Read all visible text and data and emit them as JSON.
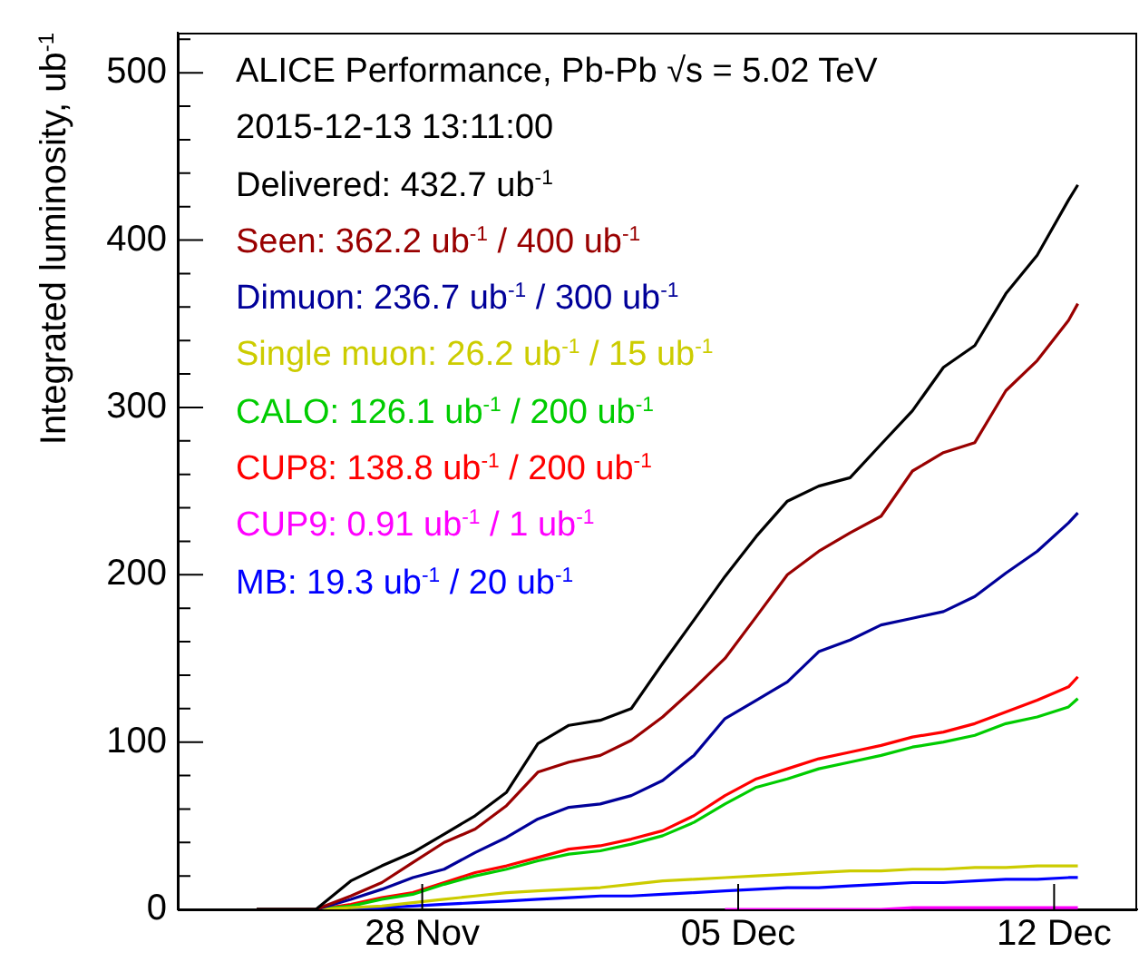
{
  "chart_data": {
    "type": "line",
    "title": "ALICE Performance, Pb-Pb √s = 5.02 TeV",
    "subtitle": "2015-12-13 13:11:00",
    "ylabel": "Integrated luminosity, ub$^{-1}$",
    "x": [
      "2015-11-24T08:00",
      "2015-11-25T15:30",
      "2015-11-26T10:00",
      "2015-11-27T02:30",
      "2015-11-27T19:00",
      "2015-11-28T11:40",
      "2015-11-29T04:10",
      "2015-11-29T20:50",
      "2015-11-30T13:30",
      "2015-12-01T06:00",
      "2015-12-01T22:40",
      "2015-12-02T15:10",
      "2015-12-03T07:50",
      "2015-12-04T00:30",
      "2015-12-04T17:00",
      "2015-12-05T09:40",
      "2015-12-06T02:10",
      "2015-12-06T18:50",
      "2015-12-07T11:30",
      "2015-12-08T04:00",
      "2015-12-08T20:40",
      "2015-12-09T13:10",
      "2015-12-10T05:50",
      "2015-12-10T22:20",
      "2015-12-11T15:00",
      "2015-12-12T07:40",
      "2015-12-12T12:36"
    ],
    "series": [
      {
        "name": "Delivered: 432.7 ub$^{-1}$",
        "color": "#000000",
        "values": [
          0,
          0,
          17,
          26,
          34,
          45,
          56,
          70,
          99,
          110,
          113,
          120,
          147,
          173,
          199,
          223,
          244,
          253,
          258,
          278,
          298,
          324,
          337,
          368,
          391,
          424,
          433
        ]
      },
      {
        "name": "Seen: 362.2 ub$^{-1}$ / 400 ub$^{-1}$",
        "color": "#990000",
        "values": [
          0,
          0,
          8,
          16,
          28,
          40,
          48,
          62,
          82,
          88,
          92,
          101,
          115,
          132,
          150,
          175,
          200,
          214,
          225,
          235,
          262,
          273,
          279,
          310,
          328,
          352,
          362
        ]
      },
      {
        "name": "Dimuon: 236.7 ub$^{-1}$ / 300 ub$^{-1}$",
        "color": "#000099",
        "values": [
          0,
          0,
          6,
          12,
          19,
          24,
          34,
          43,
          54,
          61,
          63,
          68,
          77,
          92,
          114,
          125,
          136,
          154,
          161,
          170,
          174,
          178,
          187,
          201,
          214,
          231,
          237
        ]
      },
      {
        "name": "Single muon: 26.2 ub$^{-1}$ / 15 ub$^{-1}$",
        "color": "#cccc00",
        "values": [
          0,
          0,
          1,
          2,
          4,
          6,
          8,
          10,
          11,
          12,
          13,
          15,
          17,
          18,
          19,
          20,
          21,
          22,
          23,
          23,
          24,
          24,
          25,
          25,
          26,
          26,
          26
        ]
      },
      {
        "name": "CALO: 126.1 ub$^{-1}$ / 200 ub$^{-1}$",
        "color": "#00cc00",
        "values": [
          0,
          0,
          2,
          6,
          9,
          15,
          20,
          24,
          29,
          33,
          35,
          39,
          44,
          52,
          63,
          73,
          78,
          84,
          88,
          92,
          97,
          100,
          104,
          111,
          115,
          121,
          126
        ]
      },
      {
        "name": "CUP8: 138.8 ub$^{-1}$ / 200 ub$^{-1}$",
        "color": "#ff0000",
        "values": [
          0,
          0,
          3,
          7,
          10,
          16,
          22,
          26,
          31,
          36,
          38,
          42,
          47,
          56,
          68,
          78,
          84,
          90,
          94,
          98,
          103,
          106,
          111,
          118,
          125,
          133,
          139
        ]
      },
      {
        "name": "CUP9: 0.91 ub$^{-1}$ / 1 ub$^{-1}$",
        "color": "#ff00ff",
        "values": [
          null,
          null,
          null,
          null,
          null,
          null,
          null,
          null,
          null,
          null,
          null,
          null,
          null,
          null,
          0,
          0,
          0,
          0,
          0,
          0,
          1,
          1,
          1,
          1,
          1,
          1,
          1
        ]
      },
      {
        "name": "MB: 19.3 ub$^{-1}$ / 20 ub$^{-1}$",
        "color": "#0000ff",
        "values": [
          null,
          null,
          0,
          1,
          2,
          3,
          4,
          5,
          6,
          7,
          8,
          8,
          9,
          10,
          11,
          12,
          13,
          13,
          14,
          15,
          16,
          16,
          17,
          18,
          18,
          19,
          19
        ]
      }
    ],
    "xlim": [
      "2015-11-22T14:00",
      "2015-12-13T20:10"
    ],
    "xticks": [
      {
        "value": "2015-11-28",
        "label": "28 Nov"
      },
      {
        "value": "2015-12-05",
        "label": "05 Dec"
      },
      {
        "value": "2015-12-12",
        "label": "12 Dec"
      }
    ],
    "ylim": [
      0,
      524
    ],
    "yticks": [
      0,
      {
        "value": 20,
        "label": null
      },
      {
        "value": 40,
        "label": null
      },
      {
        "value": 60,
        "label": null
      },
      {
        "value": 80,
        "label": null
      },
      100,
      {
        "value": 120,
        "label": null
      },
      {
        "value": 140,
        "label": null
      },
      {
        "value": 160,
        "label": null
      },
      {
        "value": 180,
        "label": null
      },
      200,
      {
        "value": 220,
        "label": null
      },
      {
        "value": 240,
        "label": null
      },
      {
        "value": 260,
        "label": null
      },
      {
        "value": 280,
        "label": null
      },
      300,
      {
        "value": 320,
        "label": null
      },
      {
        "value": 340,
        "label": null
      },
      {
        "value": 360,
        "label": null
      },
      {
        "value": 380,
        "label": null
      },
      400,
      {
        "value": 420,
        "label": null
      },
      {
        "value": 440,
        "label": null
      },
      {
        "value": 460,
        "label": null
      },
      {
        "value": 480,
        "label": null
      },
      500,
      {
        "value": 520,
        "label": null
      }
    ],
    "grid": false,
    "legend": "top left",
    "marker": "none",
    "line_style": "solid"
  }
}
